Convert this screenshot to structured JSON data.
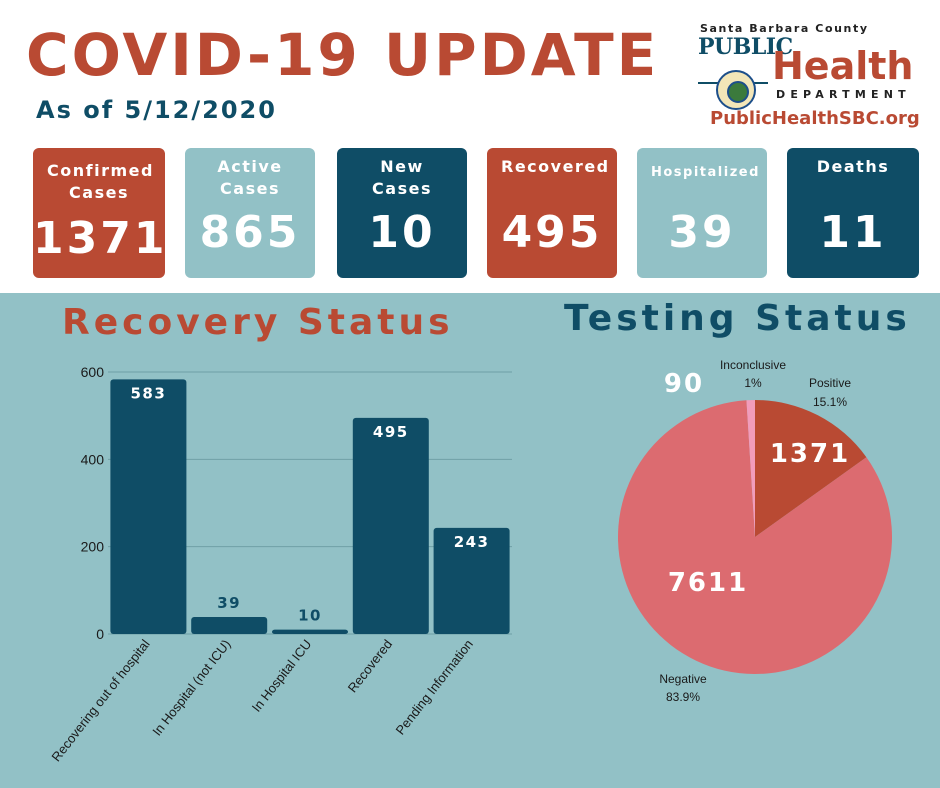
{
  "header": {
    "title": "COVID-19 UPDATE",
    "as_of": "As of 5/12/2020"
  },
  "logo": {
    "county": "Santa Barbara County",
    "public": "PUBLIC",
    "health": "Health",
    "department": "DEPARTMENT",
    "url": "PublicHealthSBC.org"
  },
  "cards": [
    {
      "label": "Confirmed Cases",
      "value": "1371",
      "color": "#b94a33"
    },
    {
      "label": "Active Cases",
      "value": "865",
      "color": "#92c1c6"
    },
    {
      "label": "New Cases",
      "value": "10",
      "color": "#0f4d66"
    },
    {
      "label": "Recovered",
      "value": "495",
      "color": "#b94a33"
    },
    {
      "label": "Hospitalized",
      "value": "39",
      "color": "#92c1c6"
    },
    {
      "label": "Deaths",
      "value": "11",
      "color": "#0f4d66"
    }
  ],
  "chart_data": [
    {
      "type": "bar",
      "title": "Recovery Status",
      "categories": [
        "Recovering out of hospital",
        "In Hospital (not ICU)",
        "In Hospital ICU",
        "Recovered",
        "Pending Information"
      ],
      "values": [
        583,
        39,
        10,
        495,
        243
      ],
      "yticks": [
        0,
        200,
        400,
        600
      ],
      "ylim": [
        0,
        600
      ],
      "grid": true,
      "bar_color": "#0f4d66",
      "label_colors": {
        "inside": "#ffffff",
        "outside": "#0f4d66"
      }
    },
    {
      "type": "pie",
      "title": "Testing Status",
      "slices": [
        {
          "name": "Positive",
          "value": 1371,
          "percent": "15.1%",
          "color": "#b94a33"
        },
        {
          "name": "Negative",
          "value": 7611,
          "percent": "83.9%",
          "color": "#dc6b70"
        },
        {
          "name": "Inconclusive",
          "value": 90,
          "percent": "1%",
          "color": "#f29cbb"
        }
      ]
    }
  ]
}
